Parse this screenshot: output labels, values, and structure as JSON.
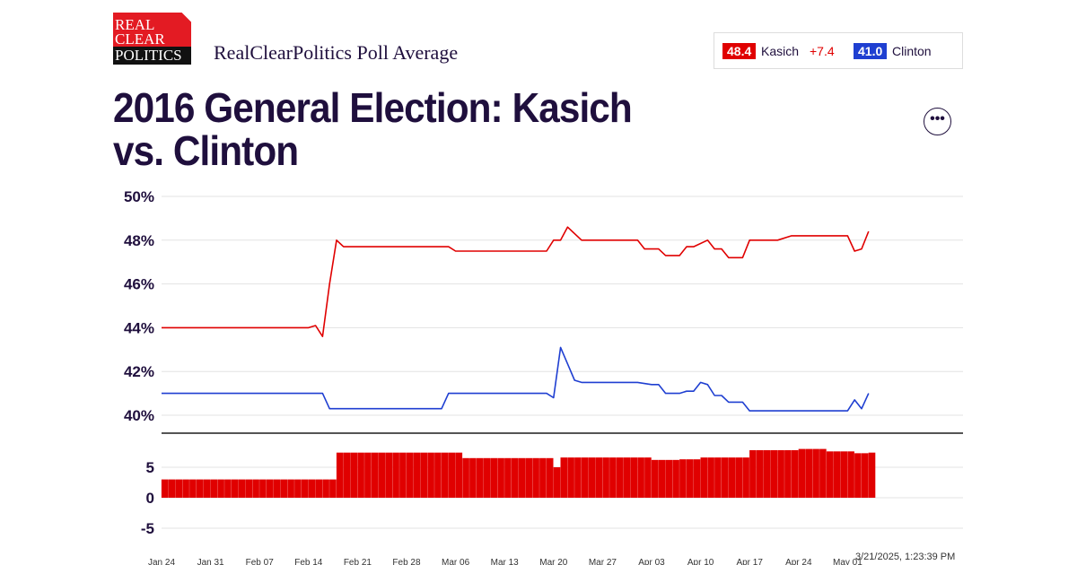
{
  "logo": {
    "lines": [
      "REAL",
      "CLEAR",
      "POLITICS"
    ]
  },
  "header": {
    "subtitle": "RealClearPolitics Poll Average",
    "title": "2016 General Election: Kasich vs. Clinton",
    "more_icon": "ellipsis-icon"
  },
  "legend": {
    "kasich": {
      "value": "48.4",
      "name": "Kasich",
      "spread": "+7.4",
      "color": "#e00000"
    },
    "clinton": {
      "value": "41.0",
      "name": "Clinton",
      "color": "#1f3fd1"
    }
  },
  "timestamp": "3/21/2025, 1:23:39 PM",
  "chart_data": [
    {
      "type": "line",
      "ylim": [
        40,
        50
      ],
      "yticks": [
        "50%",
        "48%",
        "46%",
        "44%",
        "42%",
        "40%"
      ],
      "ytick_values": [
        50,
        48,
        46,
        44,
        42,
        40
      ],
      "xlim": [
        "2016-01-24",
        "2016-05-04"
      ],
      "series": [
        {
          "name": "Kasich",
          "color": "#e00000",
          "points": [
            [
              "2016-01-24",
              44.0
            ],
            [
              "2016-02-14",
              44.0
            ],
            [
              "2016-02-15",
              44.1
            ],
            [
              "2016-02-16",
              43.6
            ],
            [
              "2016-02-17",
              46.0
            ],
            [
              "2016-02-18",
              48.0
            ],
            [
              "2016-02-19",
              47.7
            ],
            [
              "2016-03-05",
              47.7
            ],
            [
              "2016-03-06",
              47.5
            ],
            [
              "2016-03-19",
              47.5
            ],
            [
              "2016-03-20",
              48.0
            ],
            [
              "2016-03-21",
              48.0
            ],
            [
              "2016-03-22",
              48.6
            ],
            [
              "2016-03-24",
              48.0
            ],
            [
              "2016-04-01",
              48.0
            ],
            [
              "2016-04-02",
              47.6
            ],
            [
              "2016-04-04",
              47.6
            ],
            [
              "2016-04-05",
              47.3
            ],
            [
              "2016-04-07",
              47.3
            ],
            [
              "2016-04-08",
              47.7
            ],
            [
              "2016-04-09",
              47.7
            ],
            [
              "2016-04-11",
              48.0
            ],
            [
              "2016-04-12",
              47.6
            ],
            [
              "2016-04-13",
              47.6
            ],
            [
              "2016-04-14",
              47.2
            ],
            [
              "2016-04-16",
              47.2
            ],
            [
              "2016-04-17",
              48.0
            ],
            [
              "2016-04-21",
              48.0
            ],
            [
              "2016-04-23",
              48.2
            ],
            [
              "2016-05-01",
              48.2
            ],
            [
              "2016-05-02",
              47.5
            ],
            [
              "2016-05-03",
              47.6
            ],
            [
              "2016-05-04",
              48.4
            ]
          ]
        },
        {
          "name": "Clinton",
          "color": "#1f3fd1",
          "points": [
            [
              "2016-01-24",
              41.0
            ],
            [
              "2016-02-15",
              41.0
            ],
            [
              "2016-02-16",
              41.0
            ],
            [
              "2016-02-17",
              40.3
            ],
            [
              "2016-03-03",
              40.3
            ],
            [
              "2016-03-04",
              40.3
            ],
            [
              "2016-03-05",
              41.0
            ],
            [
              "2016-03-19",
              41.0
            ],
            [
              "2016-03-20",
              40.8
            ],
            [
              "2016-03-21",
              43.1
            ],
            [
              "2016-03-23",
              41.6
            ],
            [
              "2016-03-24",
              41.5
            ],
            [
              "2016-04-01",
              41.5
            ],
            [
              "2016-04-03",
              41.4
            ],
            [
              "2016-04-04",
              41.4
            ],
            [
              "2016-04-05",
              41.0
            ],
            [
              "2016-04-07",
              41.0
            ],
            [
              "2016-04-08",
              41.1
            ],
            [
              "2016-04-09",
              41.1
            ],
            [
              "2016-04-10",
              41.5
            ],
            [
              "2016-04-11",
              41.4
            ],
            [
              "2016-04-12",
              40.9
            ],
            [
              "2016-04-13",
              40.9
            ],
            [
              "2016-04-14",
              40.6
            ],
            [
              "2016-04-16",
              40.6
            ],
            [
              "2016-04-17",
              40.2
            ],
            [
              "2016-05-01",
              40.2
            ],
            [
              "2016-05-02",
              40.7
            ],
            [
              "2016-05-03",
              40.3
            ],
            [
              "2016-05-04",
              41.0
            ]
          ]
        }
      ]
    },
    {
      "type": "bar",
      "name": "spread",
      "ylim": [
        -7,
        9
      ],
      "yticks": [
        "5",
        "0",
        "-5"
      ],
      "ytick_values": [
        5,
        0,
        -5
      ],
      "color": "#e00000",
      "steps": [
        [
          "2016-01-24",
          3.0
        ],
        [
          "2016-02-18",
          7.4
        ],
        [
          "2016-03-07",
          6.5
        ],
        [
          "2016-03-20",
          5.0
        ],
        [
          "2016-03-21",
          6.6
        ],
        [
          "2016-04-03",
          6.2
        ],
        [
          "2016-04-07",
          6.3
        ],
        [
          "2016-04-10",
          6.6
        ],
        [
          "2016-04-17",
          7.8
        ],
        [
          "2016-04-24",
          8.0
        ],
        [
          "2016-04-28",
          7.6
        ],
        [
          "2016-05-02",
          7.3
        ],
        [
          "2016-05-04",
          7.4
        ]
      ],
      "xticks": [
        "Jan 24",
        "Jan 31",
        "Feb 07",
        "Feb 14",
        "Feb 21",
        "Feb 28",
        "Mar 06",
        "Mar 13",
        "Mar 20",
        "Mar 27",
        "Apr 03",
        "Apr 10",
        "Apr 17",
        "Apr 24",
        "May 01"
      ]
    }
  ]
}
